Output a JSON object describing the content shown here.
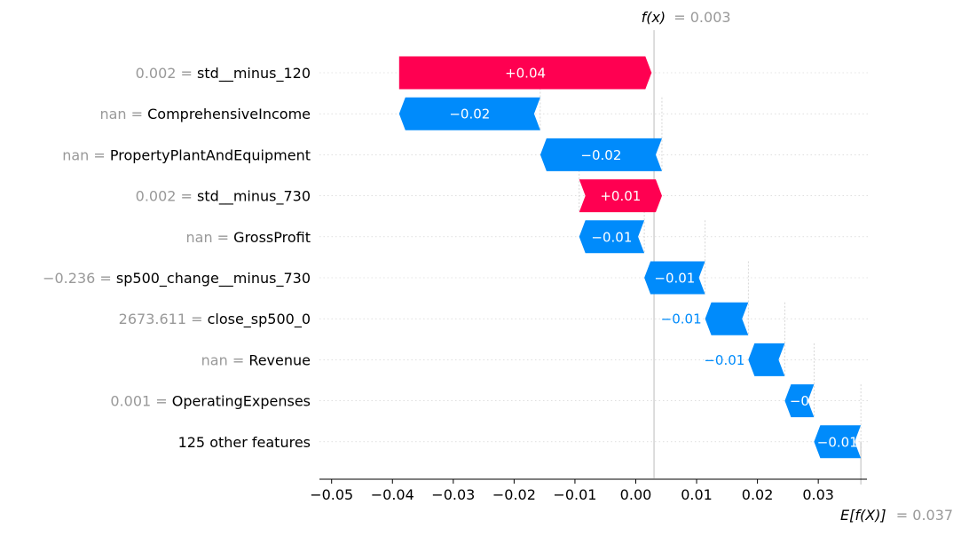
{
  "chart_data": {
    "type": "bar",
    "subtype": "waterfall",
    "fx_label": "f(x)",
    "fx_value_text": "= 0.003",
    "fx_value": 0.003,
    "ex_label": "E[f(X)]",
    "ex_value_text": "= 0.037",
    "ex_value": 0.037,
    "xlim": [
      -0.052,
      0.038
    ],
    "xticks": [
      -0.05,
      -0.04,
      -0.03,
      -0.02,
      -0.01,
      0.0,
      0.01,
      0.02,
      0.03
    ],
    "xtick_labels": [
      "−0.05",
      "−0.04",
      "−0.03",
      "−0.02",
      "−0.01",
      "0.00",
      "0.01",
      "0.02",
      "0.03"
    ],
    "grid": false,
    "features": [
      {
        "value": "0.002",
        "name": "std__minus_120",
        "start": -0.0389,
        "end": 0.0026,
        "label": "+0.04",
        "label_position": "inside"
      },
      {
        "value": "nan",
        "name": "ComprehensiveIncome",
        "start": -0.0157,
        "end": -0.0389,
        "label": "−0.02",
        "label_position": "inside"
      },
      {
        "value": "nan",
        "name": "PropertyPlantAndEquipment",
        "start": 0.0043,
        "end": -0.0157,
        "label": "−0.02",
        "label_position": "inside"
      },
      {
        "value": "0.002",
        "name": "std__minus_730",
        "start": -0.0093,
        "end": 0.0043,
        "label": "+0.01",
        "label_position": "inside"
      },
      {
        "value": "nan",
        "name": "GrossProfit",
        "start": 0.0014,
        "end": -0.0093,
        "label": "−0.01",
        "label_position": "inside"
      },
      {
        "value": "−0.236",
        "name": "sp500_change__minus_730",
        "start": 0.0114,
        "end": 0.0014,
        "label": "−0.01",
        "label_position": "inside"
      },
      {
        "value": "2673.611",
        "name": "close_sp500_0",
        "start": 0.0185,
        "end": 0.0114,
        "label": "−0.01",
        "label_position": "outside"
      },
      {
        "value": "nan",
        "name": "Revenue",
        "start": 0.0245,
        "end": 0.0185,
        "label": "−0.01",
        "label_position": "outside"
      },
      {
        "value": "0.001",
        "name": "OperatingExpenses",
        "start": 0.0293,
        "end": 0.0245,
        "label": "−0",
        "label_position": "inside"
      },
      {
        "value": "",
        "name": "125 other features",
        "start": 0.037,
        "end": 0.0293,
        "label": "−0.01",
        "label_position": "inside"
      }
    ],
    "colors": {
      "positive": "#ff0051",
      "negative": "#008bfb",
      "axis": "#000000",
      "feature_value": "#999999",
      "row_grid": "#cccccc"
    }
  }
}
